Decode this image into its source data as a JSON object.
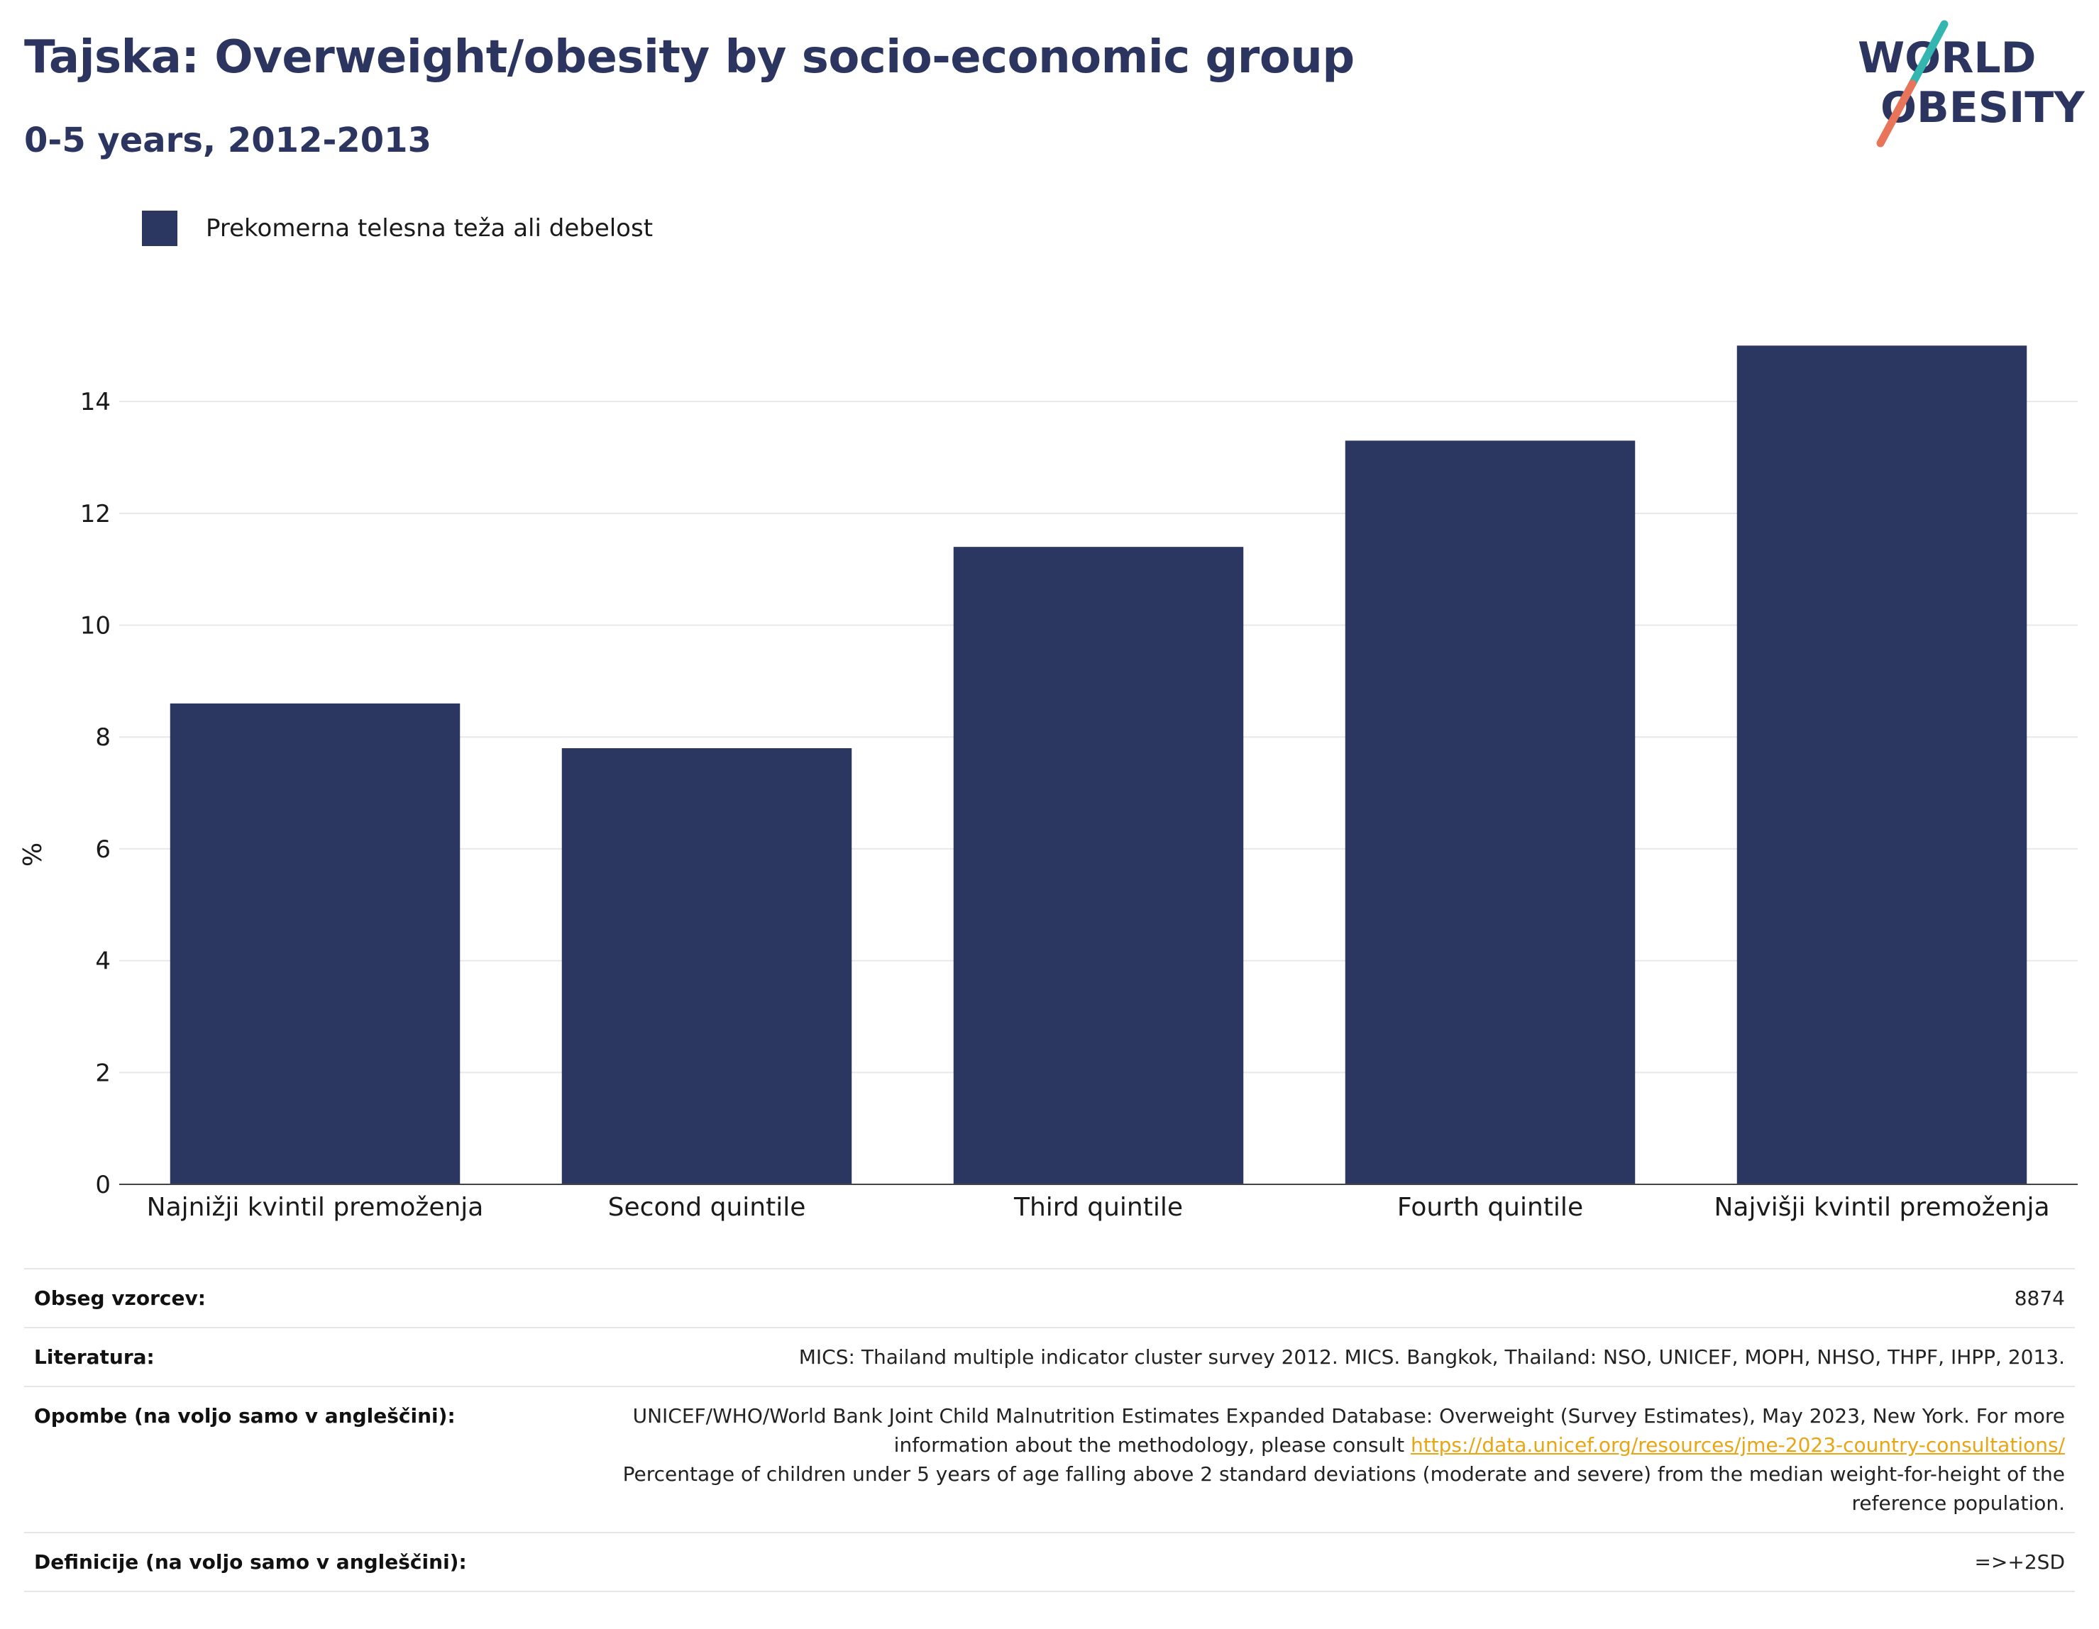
{
  "header": {
    "title": "Tajska: Overweight/obesity by socio-economic group",
    "subtitle": "0-5 years, 2012-2013"
  },
  "logo": {
    "line1": "WORLD",
    "line2": "OBESITY",
    "colors": {
      "text": "#2b3560",
      "slash_teal": "#33b5b0",
      "slash_coral": "#e8745a"
    }
  },
  "chart_data": {
    "type": "bar",
    "categories": [
      "Najnižji kvintil premoženja",
      "Second quintile",
      "Third quintile",
      "Fourth quintile",
      "Najvišji kvintil premoženja"
    ],
    "series": [
      {
        "name": "Prekomerna telesna teža ali debelost",
        "values": [
          8.6,
          7.8,
          11.4,
          13.3,
          15.0
        ],
        "color": "#2b3661"
      }
    ],
    "ylabel": "%",
    "ylim": [
      0,
      15.6
    ],
    "yticks": [
      0,
      2,
      4,
      6,
      8,
      10,
      12,
      14
    ],
    "grid": true,
    "legend": "top-left"
  },
  "info": {
    "sample_label": "Obseg vzorcev:",
    "sample_value": "8874",
    "refs_label": "Literatura:",
    "refs_value": "MICS: Thailand multiple indicator cluster survey 2012. MICS. Bangkok, Thailand: NSO, UNICEF, MOPH, NHSO, THPF, IHPP, 2013.",
    "notes_label": "Opombe (na voljo samo v angleščini):",
    "notes_text1": "UNICEF/WHO/World Bank Joint Child Malnutrition Estimates Expanded Database: Overweight (Survey Estimates), May 2023, New York. For more information about the methodology, please consult",
    "notes_link": "https://data.unicef.org/resources/jme-2023-country-consultations/",
    "notes_text2": "Percentage of children under 5 years of age falling above 2 standard deviations (moderate and severe) from the median weight-for-height of the reference population.",
    "defs_label": "Definicije (na voljo samo v angleščini):",
    "defs_value": "=>+2SD"
  }
}
